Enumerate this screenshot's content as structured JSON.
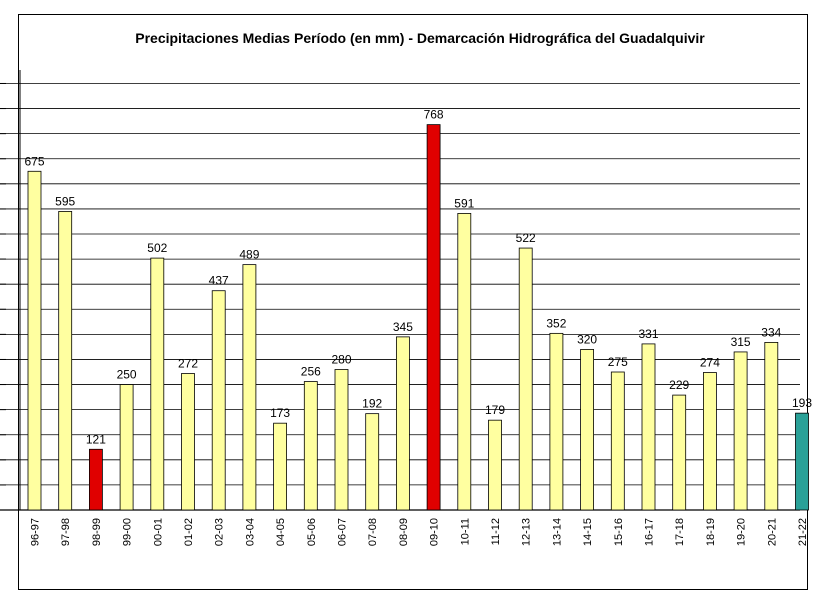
{
  "chart_data": {
    "type": "bar",
    "title": "Precipitaciones Medias Período (en mm) - Demarcación Hidrográfica del Guadalquivir",
    "xlabel": "",
    "ylabel": "",
    "ylim": [
      0,
      850
    ],
    "grid": true,
    "legend": "none",
    "categories": [
      "96-97",
      "97-98",
      "98-99",
      "99-00",
      "00-01",
      "01-02",
      "02-03",
      "03-04",
      "04-05",
      "05-06",
      "06-07",
      "07-08",
      "08-09",
      "09-10",
      "10-11",
      "11-12",
      "12-13",
      "13-14",
      "14-15",
      "15-16",
      "16-17",
      "17-18",
      "18-19",
      "19-20",
      "20-21",
      "21-22"
    ],
    "values": [
      675,
      595,
      121,
      250,
      502,
      272,
      437,
      489,
      173,
      256,
      280,
      192,
      345,
      768,
      591,
      179,
      522,
      352,
      320,
      275,
      331,
      229,
      274,
      315,
      334,
      193
    ],
    "colors": [
      "#ffffa0",
      "#ffffa0",
      "#e00000",
      "#ffffa0",
      "#ffffa0",
      "#ffffa0",
      "#ffffa0",
      "#ffffa0",
      "#ffffa0",
      "#ffffa0",
      "#ffffa0",
      "#ffffa0",
      "#ffffa0",
      "#e00000",
      "#ffffa0",
      "#ffffa0",
      "#ffffa0",
      "#ffffa0",
      "#ffffa0",
      "#ffffa0",
      "#ffffa0",
      "#ffffa0",
      "#ffffa0",
      "#ffffa0",
      "#ffffa0",
      "#2aa198"
    ],
    "gridline_color": "#000000",
    "bar_outline_color": "#000000"
  }
}
